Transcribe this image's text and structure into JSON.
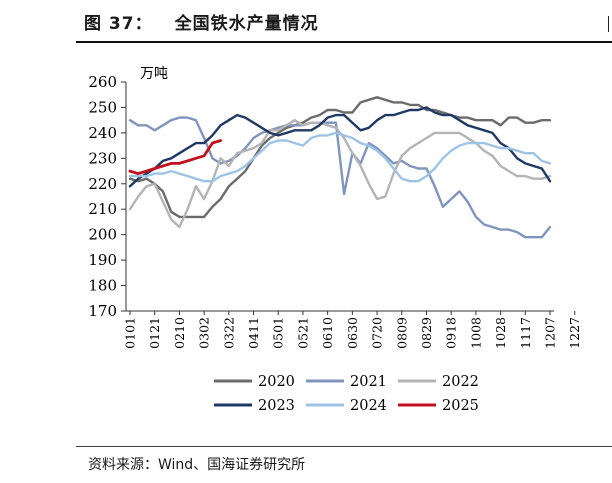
{
  "figure": {
    "number": "图 37：",
    "title": "全国铁水产量情况",
    "source": "资料来源：Wind、国海证券研究所"
  },
  "chart_data": {
    "type": "line",
    "unit": "万吨",
    "ylim": [
      170,
      260
    ],
    "yticks": [
      170,
      180,
      190,
      200,
      210,
      220,
      230,
      240,
      250,
      260
    ],
    "x_count": 52,
    "x_tick_labels": [
      "0101",
      "0121",
      "0210",
      "0302",
      "0322",
      "0411",
      "0501",
      "0521",
      "0610",
      "0630",
      "0720",
      "0809",
      "0829",
      "0918",
      "1008",
      "1028",
      "1117",
      "1207",
      "1227"
    ],
    "series": [
      {
        "name": "2020",
        "color": "#6b6b6b",
        "values": [
          222,
          221,
          222,
          220,
          217,
          209,
          207,
          207,
          207,
          207,
          211,
          214,
          219,
          222,
          225,
          230,
          235,
          238,
          240,
          242,
          243,
          244,
          246,
          247,
          249,
          249,
          248,
          248,
          252,
          253,
          254,
          253,
          252,
          252,
          251,
          251,
          249,
          249,
          248,
          247,
          246,
          246,
          245,
          245,
          245,
          243,
          246,
          246,
          244,
          244,
          245,
          245
        ]
      },
      {
        "name": "2021",
        "color": "#7f95bd",
        "values": [
          245,
          243,
          243,
          241,
          243,
          245,
          246,
          246,
          245,
          238,
          230,
          228,
          229,
          231,
          234,
          238,
          240,
          241,
          242,
          243,
          243,
          243,
          244,
          244,
          244,
          244,
          216,
          232,
          228,
          236,
          234,
          231,
          228,
          229,
          227,
          226,
          226,
          219,
          211,
          214,
          217,
          213,
          207,
          204,
          203,
          202,
          202,
          201,
          199,
          199,
          199,
          203
        ]
      },
      {
        "name": "2022",
        "color": "#b4b4b4",
        "values": [
          210,
          215,
          219,
          220,
          213,
          206,
          203,
          210,
          219,
          214,
          221,
          230,
          227,
          232,
          233,
          234,
          236,
          241,
          241,
          243,
          245,
          243,
          244,
          244,
          243,
          242,
          238,
          232,
          227,
          220,
          214,
          215,
          224,
          231,
          234,
          236,
          238,
          240,
          240,
          240,
          240,
          238,
          236,
          233,
          231,
          227,
          225,
          223,
          223,
          222,
          222,
          223
        ]
      },
      {
        "name": "2023",
        "color": "#1f3864",
        "values": [
          219,
          222,
          224,
          226,
          229,
          230,
          232,
          234,
          236,
          236,
          239,
          243,
          245,
          247,
          246,
          244,
          242,
          240,
          239,
          240,
          241,
          241,
          241,
          243,
          246,
          247,
          247,
          244,
          241,
          242,
          245,
          247,
          247,
          248,
          249,
          249,
          250,
          248,
          247,
          247,
          245,
          243,
          242,
          241,
          240,
          236,
          234,
          230,
          228,
          227,
          226,
          221
        ]
      },
      {
        "name": "2024",
        "color": "#9dc3e6",
        "values": [
          223,
          223,
          223,
          224,
          224,
          225,
          224,
          223,
          222,
          221,
          221,
          223,
          224,
          225,
          227,
          230,
          233,
          236,
          237,
          237,
          236,
          235,
          238,
          239,
          239,
          240,
          239,
          238,
          236,
          235,
          233,
          230,
          226,
          222,
          221,
          221,
          223,
          226,
          230,
          233,
          235,
          236,
          236,
          236,
          235,
          234,
          234,
          233,
          232,
          232,
          229,
          228
        ]
      },
      {
        "name": "2025",
        "color": "#c0101c",
        "values": [
          225,
          224,
          225,
          226,
          227,
          228,
          228,
          229,
          230,
          231,
          236,
          237
        ]
      }
    ]
  }
}
